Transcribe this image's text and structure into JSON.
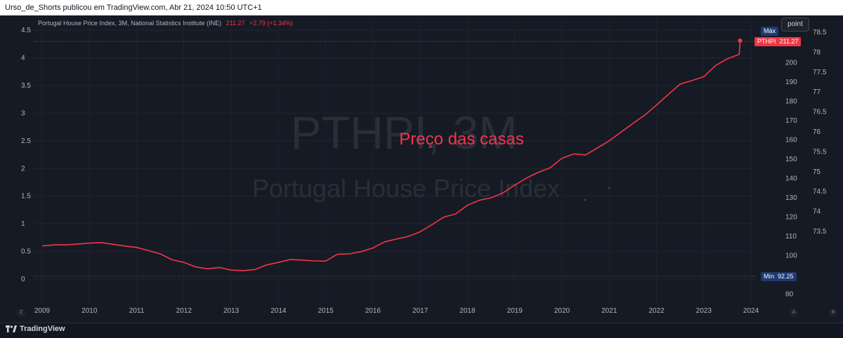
{
  "header": {
    "publisher_line": "Urso_de_Shorts publicou em TradingView.com, Abr 21, 2024 10:50 UTC+1"
  },
  "legend": {
    "title": "Portugal House Price Index, 3M, National Statistics Institute (INE)",
    "last_value": "211.27",
    "change": "+2.79 (+1.34%)"
  },
  "controls": {
    "point_label": "point"
  },
  "watermark": {
    "symbol": "PTHPI, 3M",
    "name": "Portugal House Price Index"
  },
  "annotation": {
    "text": "Preço das casas",
    "color": "#f23645"
  },
  "tags": {
    "max_label": "Máx",
    "min_label": "Mín",
    "min_value": "92.25",
    "last_symbol": "PTHPI",
    "last_value": "211.27"
  },
  "left_axis": {
    "ticks": [
      "4.5",
      "4",
      "3.5",
      "3",
      "2.5",
      "2",
      "1.5",
      "1",
      "0.5",
      "0"
    ]
  },
  "right_axis_outer": {
    "ticks": [
      "78.5",
      "78",
      "77.5",
      "77",
      "76.5",
      "76",
      "75.5",
      "75",
      "74.5",
      "74",
      "73.5"
    ]
  },
  "right_axis_inner": {
    "ticks": [
      "200",
      "190",
      "180",
      "170",
      "160",
      "150",
      "140",
      "130",
      "120",
      "110",
      "100",
      "90",
      "80"
    ]
  },
  "axis_badges": {
    "left": "Z",
    "right_a": "A",
    "right_b": "B"
  },
  "footer": {
    "brand": "TradingView"
  },
  "colors": {
    "series": "#f23645",
    "background": "#161a25",
    "grid": "#232632",
    "text": "#b2b5be"
  },
  "chart_data": {
    "type": "line",
    "title": "Portugal House Price Index, 3M, National Statistics Institute (INE)",
    "x_ticks": [
      "2009",
      "2010",
      "2011",
      "2012",
      "2013",
      "2014",
      "2015",
      "2016",
      "2017",
      "2018",
      "2019",
      "2020",
      "2021",
      "2022",
      "2023",
      "2024"
    ],
    "ylim": [
      80,
      215
    ],
    "grid": true,
    "series": [
      {
        "name": "PTHPI",
        "color": "#f23645",
        "x": [
          2009.0,
          2009.25,
          2009.5,
          2009.75,
          2010.0,
          2010.25,
          2010.5,
          2010.75,
          2011.0,
          2011.25,
          2011.5,
          2011.75,
          2012.0,
          2012.25,
          2012.5,
          2012.75,
          2013.0,
          2013.25,
          2013.5,
          2013.75,
          2014.0,
          2014.25,
          2014.5,
          2014.75,
          2015.0,
          2015.25,
          2015.5,
          2015.75,
          2016.0,
          2016.25,
          2016.5,
          2016.75,
          2017.0,
          2017.25,
          2017.5,
          2017.75,
          2018.0,
          2018.25,
          2018.5,
          2018.75,
          2019.0,
          2019.25,
          2019.5,
          2019.75,
          2020.0,
          2020.25,
          2020.5,
          2020.75,
          2021.0,
          2021.25,
          2021.5,
          2021.75,
          2022.0,
          2022.25,
          2022.5,
          2022.75,
          2023.0,
          2023.25,
          2023.5,
          2023.75
        ],
        "values": [
          105.0,
          105.6,
          105.6,
          106.0,
          106.5,
          106.8,
          105.9,
          105.0,
          104.3,
          102.6,
          100.9,
          97.9,
          96.5,
          94.2,
          93.2,
          93.9,
          92.5,
          92.25,
          92.8,
          95.2,
          96.5,
          98.0,
          97.7,
          97.3,
          97.2,
          100.8,
          100.9,
          102.1,
          104.0,
          107.2,
          108.6,
          110.0,
          112.4,
          116.1,
          120.0,
          121.6,
          126.1,
          128.7,
          130.0,
          132.5,
          136.5,
          140.2,
          143.2,
          145.5,
          150.5,
          152.7,
          152.2,
          155.8,
          159.5,
          164.0,
          168.5,
          172.8,
          178.0,
          183.5,
          188.9,
          190.7,
          192.7,
          198.5,
          202.0,
          204.3
        ]
      }
    ],
    "last": {
      "value": 211.27,
      "change": 2.79,
      "change_pct": 1.34
    },
    "max_label": "Máx",
    "min": 92.25
  }
}
